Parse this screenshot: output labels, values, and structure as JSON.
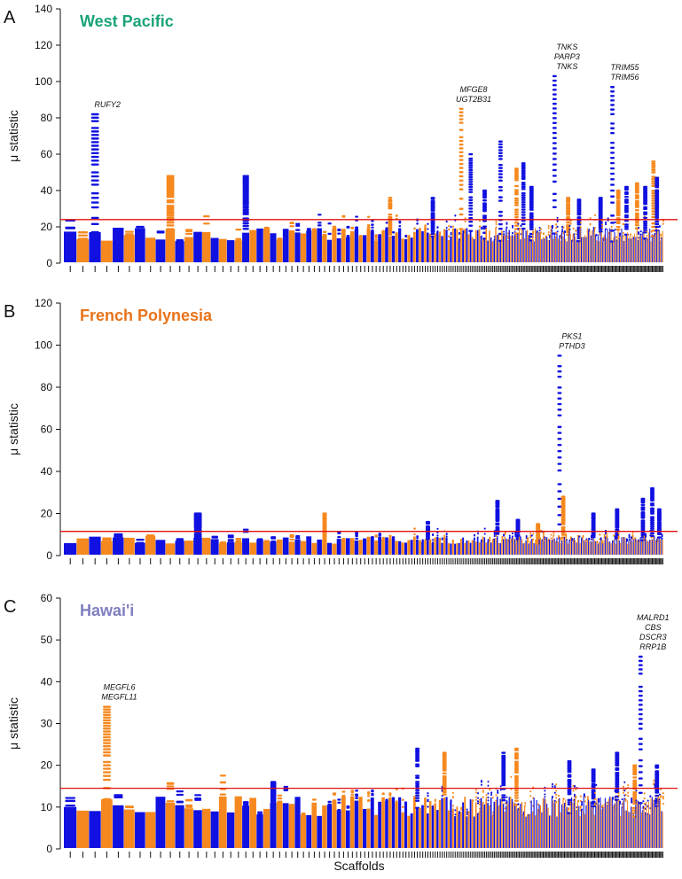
{
  "colors": {
    "blue": "#1010e0",
    "orange": "#f5891f",
    "threshold": "#e01010",
    "west_pacific": "#1aa37a",
    "french_polynesia": "#e8731a",
    "hawaii": "#7f7fc0"
  },
  "xlabel": "Scaffolds",
  "chart_data": [
    {
      "type": "scatter",
      "panel": "A",
      "title": "West Pacific",
      "title_color_key": "west_pacific",
      "ylabel": "μ statistic",
      "ylim": [
        0,
        140
      ],
      "yticks": [
        "0",
        "20",
        "40",
        "60",
        "80",
        "100",
        "120",
        "140"
      ],
      "threshold": 24,
      "num_scaffolds": 230,
      "base_level": 17,
      "peaks": [
        {
          "scaffold": 2,
          "height": 82
        },
        {
          "scaffold": 9,
          "height": 48
        },
        {
          "scaffold": 18,
          "height": 48
        },
        {
          "scaffold": 47,
          "height": 36
        },
        {
          "scaffold": 62,
          "height": 36
        },
        {
          "scaffold": 75,
          "height": 85
        },
        {
          "scaffold": 80,
          "height": 60
        },
        {
          "scaffold": 88,
          "height": 40
        },
        {
          "scaffold": 98,
          "height": 67
        },
        {
          "scaffold": 109,
          "height": 52
        },
        {
          "scaffold": 114,
          "height": 55
        },
        {
          "scaffold": 120,
          "height": 42
        },
        {
          "scaffold": 138,
          "height": 103
        },
        {
          "scaffold": 149,
          "height": 36
        },
        {
          "scaffold": 158,
          "height": 35
        },
        {
          "scaffold": 176,
          "height": 36
        },
        {
          "scaffold": 186,
          "height": 97
        },
        {
          "scaffold": 191,
          "height": 40
        },
        {
          "scaffold": 198,
          "height": 42
        },
        {
          "scaffold": 207,
          "height": 44
        },
        {
          "scaffold": 214,
          "height": 42
        },
        {
          "scaffold": 221,
          "height": 56
        },
        {
          "scaffold": 224,
          "height": 47
        }
      ],
      "annotations": [
        {
          "scaffold": 2,
          "height": 82,
          "lines": [
            "RUFY2"
          ]
        },
        {
          "scaffold": 75,
          "height": 85,
          "lines": [
            "MFGE8",
            "UGT2B31"
          ]
        },
        {
          "scaffold": 138,
          "height": 103,
          "lines": [
            "TNKS",
            "PARP3",
            "TNKS"
          ]
        },
        {
          "scaffold": 186,
          "height": 97,
          "lines": [
            "TRIM55",
            "TRIM56"
          ]
        }
      ]
    },
    {
      "type": "scatter",
      "panel": "B",
      "title": "French Polynesia",
      "title_color_key": "french_polynesia",
      "ylabel": "μ statistic",
      "ylim": [
        0,
        120
      ],
      "yticks": [
        "0",
        "20",
        "40",
        "60",
        "80",
        "100",
        "120"
      ],
      "threshold": 11.5,
      "num_scaffolds": 230,
      "base_level": 8,
      "peaks": [
        {
          "scaffold": 12,
          "height": 20
        },
        {
          "scaffold": 31,
          "height": 20
        },
        {
          "scaffold": 60,
          "height": 16
        },
        {
          "scaffold": 96,
          "height": 26
        },
        {
          "scaffold": 110,
          "height": 17
        },
        {
          "scaffold": 125,
          "height": 15
        },
        {
          "scaffold": 142,
          "height": 95
        },
        {
          "scaffold": 145,
          "height": 28
        },
        {
          "scaffold": 170,
          "height": 20
        },
        {
          "scaffold": 190,
          "height": 22
        },
        {
          "scaffold": 212,
          "height": 27
        },
        {
          "scaffold": 220,
          "height": 32
        },
        {
          "scaffold": 226,
          "height": 22
        }
      ],
      "annotations": [
        {
          "scaffold": 142,
          "height": 95,
          "lines": [
            "PKS1",
            "PTHD3"
          ]
        }
      ]
    },
    {
      "type": "scatter",
      "panel": "C",
      "title": "Hawai'i",
      "title_color_key": "hawaii",
      "ylabel": "μ statistic",
      "ylim": [
        0,
        60
      ],
      "yticks": [
        "0",
        "10",
        "20",
        "30",
        "40",
        "50",
        "60"
      ],
      "threshold": 14.5,
      "num_scaffolds": 230,
      "base_level": 11,
      "peaks": [
        {
          "scaffold": 3,
          "height": 34
        },
        {
          "scaffold": 22,
          "height": 16
        },
        {
          "scaffold": 56,
          "height": 24
        },
        {
          "scaffold": 67,
          "height": 23
        },
        {
          "scaffold": 100,
          "height": 23
        },
        {
          "scaffold": 109,
          "height": 24
        },
        {
          "scaffold": 150,
          "height": 21
        },
        {
          "scaffold": 170,
          "height": 19
        },
        {
          "scaffold": 190,
          "height": 23
        },
        {
          "scaffold": 210,
          "height": 46
        },
        {
          "scaffold": 205,
          "height": 20
        },
        {
          "scaffold": 224,
          "height": 20
        }
      ],
      "annotations": [
        {
          "scaffold": 3,
          "height": 34,
          "lines": [
            "MEGFL6",
            "MEGFL11"
          ]
        },
        {
          "scaffold": 210,
          "height": 46,
          "lines": [
            "MALRD1",
            "CBS",
            "DSCR3",
            "RRP1B"
          ]
        }
      ]
    }
  ]
}
